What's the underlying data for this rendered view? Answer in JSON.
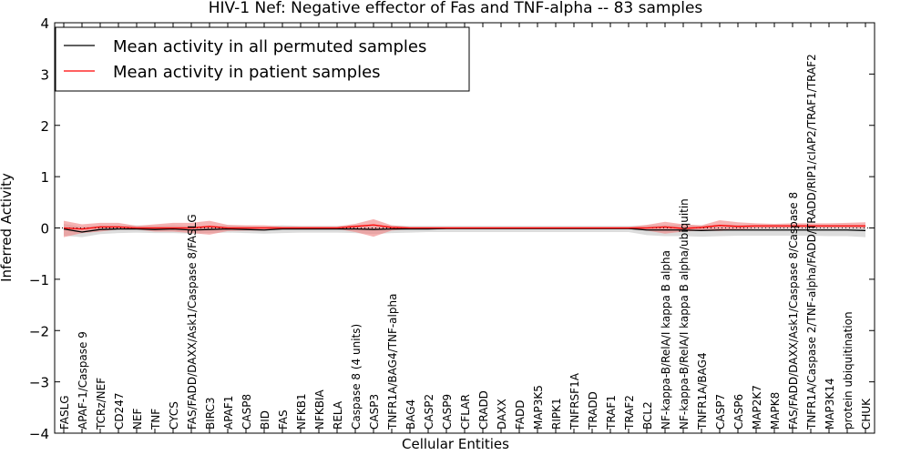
{
  "chart_data": {
    "type": "line",
    "title": "HIV-1 Nef: Negative effector of Fas and TNF-alpha -- 83 samples",
    "xlabel": "Cellular Entities",
    "ylabel": "Inferred Activity",
    "ylim": [
      -4,
      4
    ],
    "yticks": [
      -4,
      -3,
      -2,
      -1,
      0,
      1,
      2,
      3,
      4
    ],
    "ytick_labels": [
      "−4",
      "−3",
      "−2",
      "−1",
      "0",
      "1",
      "2",
      "3",
      "4"
    ],
    "grid": false,
    "legend_position": "top-left",
    "categories": [
      "FASLG",
      "APAF-1/Caspase 9",
      "TCRz/NEF",
      "CD247",
      "NEF",
      "TNF",
      "CYCS",
      "FAS/FADD/DAXX/Ask1/Caspase 8/FASLG",
      "BIRC3",
      "APAF1",
      "CASP8",
      "BID",
      "FAS",
      "NFKB1",
      "NFKBIA",
      "RELA",
      "Caspase 8 (4 units)",
      "CASP3",
      "TNFR1A/BAG4/TNF-alpha",
      "BAG4",
      "CASP2",
      "CASP9",
      "CFLAR",
      "CRADD",
      "DAXX",
      "FADD",
      "MAP3K5",
      "RIPK1",
      "TNFRSF1A",
      "TRADD",
      "TRAF1",
      "TRAF2",
      "BCL2",
      "NF-kappa-B/RelA/I kappa B alpha",
      "NF-kappa-B/RelA/I kappa B alpha/ubiquitin",
      "TNFR1A/BAG4",
      "CASP7",
      "CASP6",
      "MAP2K7",
      "MAPK8",
      "FAS/FADD/DAXX/Ask1/Caspase 8/Caspase 8",
      "TNFR1A/Caspase 2/TNF-alpha/FADD/TRADD/RIP1/cIAP2/TRAF1/TRAF2",
      "MAP3K14",
      "protein ubiquitination",
      "CHUK"
    ],
    "series": [
      {
        "name": "Mean activity in all permuted samples",
        "color": "#000000",
        "values": [
          -0.02,
          -0.08,
          -0.03,
          -0.02,
          -0.02,
          -0.03,
          -0.02,
          -0.04,
          -0.03,
          -0.02,
          -0.03,
          -0.04,
          -0.02,
          -0.02,
          -0.02,
          -0.02,
          -0.02,
          -0.03,
          -0.02,
          -0.02,
          -0.02,
          -0.01,
          -0.01,
          -0.01,
          -0.01,
          -0.01,
          -0.01,
          -0.01,
          -0.01,
          -0.01,
          -0.01,
          -0.01,
          -0.04,
          -0.04,
          -0.04,
          -0.05,
          -0.04,
          -0.04,
          -0.04,
          -0.04,
          -0.04,
          -0.04,
          -0.04,
          -0.04,
          -0.05
        ],
        "band_low": [
          -0.15,
          -0.18,
          -0.12,
          -0.1,
          -0.09,
          -0.1,
          -0.1,
          -0.11,
          -0.1,
          -0.09,
          -0.1,
          -0.11,
          -0.1,
          -0.09,
          -0.09,
          -0.09,
          -0.1,
          -0.12,
          -0.1,
          -0.09,
          -0.08,
          -0.08,
          -0.08,
          -0.08,
          -0.08,
          -0.08,
          -0.08,
          -0.08,
          -0.08,
          -0.08,
          -0.08,
          -0.08,
          -0.14,
          -0.16,
          -0.16,
          -0.17,
          -0.16,
          -0.15,
          -0.15,
          -0.15,
          -0.15,
          -0.15,
          -0.16,
          -0.16,
          -0.18
        ],
        "band_high": [
          0.08,
          0.02,
          0.05,
          0.05,
          0.05,
          0.04,
          0.05,
          0.04,
          0.04,
          0.05,
          0.04,
          0.03,
          0.05,
          0.04,
          0.04,
          0.04,
          0.05,
          0.05,
          0.05,
          0.04,
          0.04,
          0.04,
          0.04,
          0.04,
          0.04,
          0.04,
          0.04,
          0.04,
          0.04,
          0.04,
          0.04,
          0.04,
          0.05,
          0.06,
          0.06,
          0.05,
          0.06,
          0.06,
          0.06,
          0.06,
          0.06,
          0.06,
          0.06,
          0.06,
          0.06
        ]
      },
      {
        "name": "Mean activity in patient samples",
        "color": "#ff0000",
        "values": [
          0.0,
          -0.02,
          0.02,
          0.02,
          0.0,
          0.0,
          0.0,
          0.0,
          0.03,
          0.0,
          0.0,
          0.0,
          0.0,
          0.0,
          0.0,
          0.0,
          0.03,
          0.06,
          0.01,
          0.0,
          0.0,
          0.0,
          0.0,
          0.0,
          0.0,
          0.0,
          0.0,
          0.0,
          0.0,
          0.0,
          0.0,
          0.0,
          0.0,
          0.02,
          -0.01,
          0.01,
          0.05,
          0.03,
          0.04,
          0.04,
          0.04,
          0.04,
          0.04,
          0.04,
          0.04
        ],
        "band_low": [
          -0.18,
          -0.1,
          -0.07,
          -0.03,
          -0.03,
          -0.07,
          -0.07,
          -0.1,
          -0.13,
          -0.06,
          -0.05,
          -0.05,
          -0.02,
          -0.02,
          -0.02,
          -0.02,
          -0.08,
          -0.17,
          -0.05,
          -0.02,
          -0.02,
          -0.02,
          -0.02,
          -0.02,
          -0.02,
          -0.02,
          -0.02,
          -0.02,
          -0.02,
          -0.02,
          -0.02,
          -0.02,
          -0.05,
          -0.11,
          -0.07,
          -0.05,
          -0.06,
          -0.03,
          -0.01,
          -0.01,
          0.0,
          0.0,
          0.0,
          0.0,
          -0.01
        ],
        "band_high": [
          0.14,
          0.07,
          0.1,
          0.1,
          0.04,
          0.07,
          0.1,
          0.1,
          0.14,
          0.06,
          0.05,
          0.05,
          0.03,
          0.03,
          0.03,
          0.03,
          0.08,
          0.17,
          0.05,
          0.02,
          0.02,
          0.02,
          0.02,
          0.02,
          0.02,
          0.02,
          0.02,
          0.02,
          0.02,
          0.02,
          0.02,
          0.02,
          0.06,
          0.12,
          0.07,
          0.05,
          0.15,
          0.11,
          0.09,
          0.08,
          0.09,
          0.09,
          0.09,
          0.1,
          0.11
        ]
      }
    ],
    "band_colors": {
      "permuted": "#bfbfbf",
      "patient": "#f08080"
    }
  }
}
